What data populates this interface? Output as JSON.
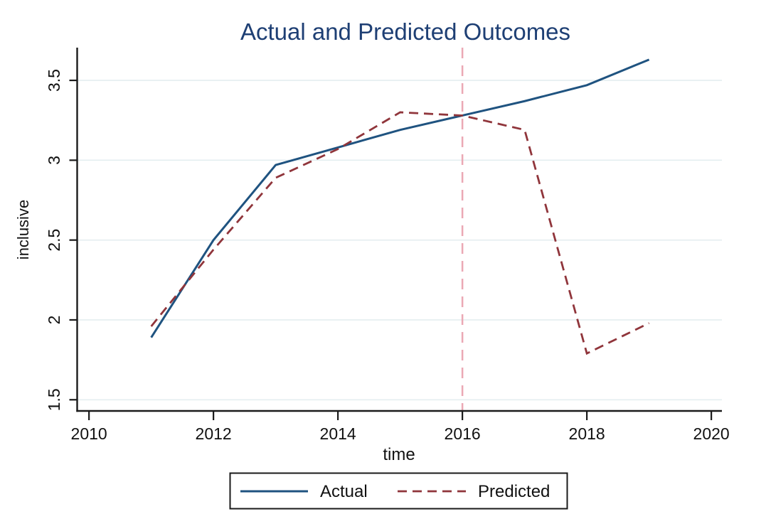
{
  "chart_data": {
    "type": "line",
    "title": "Actual and Predicted Outcomes",
    "xlabel": "time",
    "ylabel": "inclusive",
    "x": [
      2011,
      2012,
      2013,
      2014,
      2015,
      2016,
      2017,
      2018,
      2019
    ],
    "series": [
      {
        "name": "Actual",
        "style": "solid",
        "color": "#1f5380",
        "values": [
          1.89,
          2.5,
          2.97,
          3.08,
          3.19,
          3.28,
          3.37,
          3.47,
          3.63
        ]
      },
      {
        "name": "Predicted",
        "style": "dashed",
        "color": "#90353b",
        "values": [
          1.96,
          2.44,
          2.89,
          3.07,
          3.3,
          3.28,
          3.19,
          1.79,
          1.98
        ]
      }
    ],
    "reference_line": {
      "x": 2016,
      "style": "dashed",
      "color": "#eba8b4"
    },
    "xlim": [
      2009.81,
      2020.17
    ],
    "ylim": [
      1.43,
      3.705
    ],
    "x_ticks": [
      "2010",
      "2012",
      "2014",
      "2016",
      "2018",
      "2020"
    ],
    "x_tick_values": [
      2010,
      2012,
      2014,
      2016,
      2018,
      2020
    ],
    "y_ticks": [
      "1.5",
      "2",
      "2.5",
      "3",
      "3.5"
    ],
    "y_tick_values": [
      1.5,
      2.0,
      2.5,
      3.0,
      3.5
    ],
    "grid": true,
    "legend_position": "bottom-center",
    "colors": {
      "title": "#1e3f74",
      "axis": "#1a1a1a",
      "grid": "#e4eef0",
      "background": "#ffffff"
    }
  }
}
